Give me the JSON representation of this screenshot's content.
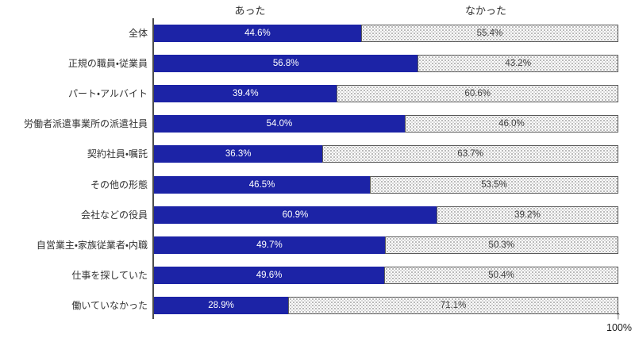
{
  "chart_data": {
    "type": "bar",
    "orientation": "horizontal",
    "stacked": true,
    "unit": "%",
    "axis_range": [
      0,
      100
    ],
    "axis_max_label": "100%",
    "legend_position": "top",
    "grid": false,
    "categories": [
      "全体",
      "正規の職員・従業員",
      "パート・アルバイト",
      "労働者派遣事業所の派遣社員",
      "契約社員・嘱託",
      "その他の形態",
      "会社などの役員",
      "自営業主・家族従業者・内職",
      "仕事を探していた",
      "働いていなかった"
    ],
    "series": [
      {
        "name": "あった",
        "fill": "solid",
        "color": "#1c23a6",
        "text_color": "#ffffff",
        "values": [
          44.6,
          56.8,
          39.4,
          54.0,
          36.3,
          46.5,
          60.9,
          49.7,
          49.6,
          28.9
        ],
        "labels": [
          "44.6%",
          "56.8%",
          "39.4%",
          "54.0%",
          "36.3%",
          "46.5%",
          "60.9%",
          "49.7%",
          "49.6%",
          "28.9%"
        ]
      },
      {
        "name": "なかった",
        "fill": "dotted-pattern",
        "color": "#ffffff",
        "pattern_dot_color": "#8a8a8a",
        "border_color": "#595959",
        "text_color": "#404040",
        "values": [
          55.4,
          43.2,
          60.6,
          46.0,
          63.7,
          53.5,
          39.2,
          50.3,
          50.4,
          71.1
        ],
        "labels": [
          "55.4%",
          "43.2%",
          "60.6%",
          "46.0%",
          "63.7%",
          "53.5%",
          "39.2%",
          "50.3%",
          "50.4%",
          "71.1%"
        ]
      }
    ]
  },
  "icons": {
    "axis_arrow": "↑"
  }
}
